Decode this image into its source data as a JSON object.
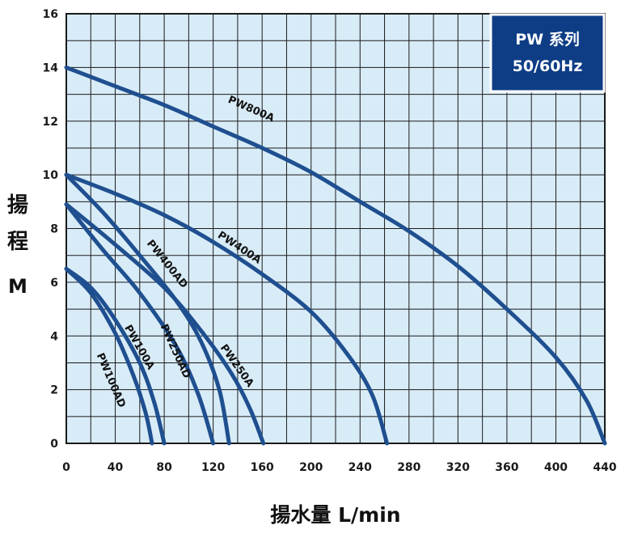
{
  "chart_data": {
    "type": "line",
    "legend_box": {
      "line1": "PW 系列",
      "line2": "50/60Hz",
      "placement": "top-right"
    },
    "xlabel": "揚水量 L/min",
    "ylabel_chars": [
      "揚",
      "程",
      "M"
    ],
    "xlim": [
      0,
      440
    ],
    "ylim": [
      0,
      16
    ],
    "x_ticks": [
      "0",
      "40",
      "80",
      "120",
      "160",
      "200",
      "240",
      "280",
      "320",
      "360",
      "400",
      "440"
    ],
    "y_ticks": [
      "0",
      "2",
      "4",
      "6",
      "8",
      "10",
      "12",
      "14",
      "16"
    ],
    "grid": true,
    "colors": {
      "plot_bg": "#d8ecf8",
      "grid": "#1a1a1a",
      "curve": "#1f4f8f",
      "legend_bg": "#0e3d86"
    },
    "series": [
      {
        "name": "PW800A",
        "points": [
          [
            0,
            14
          ],
          [
            40,
            13.3
          ],
          [
            80,
            12.6
          ],
          [
            120,
            11.8
          ],
          [
            160,
            11.0
          ],
          [
            200,
            10.1
          ],
          [
            240,
            9.0
          ],
          [
            280,
            7.9
          ],
          [
            320,
            6.6
          ],
          [
            360,
            5.0
          ],
          [
            400,
            3.2
          ],
          [
            425,
            1.6
          ],
          [
            440,
            0
          ]
        ]
      },
      {
        "name": "PW400A",
        "points": [
          [
            0,
            10
          ],
          [
            40,
            9.3
          ],
          [
            80,
            8.5
          ],
          [
            120,
            7.5
          ],
          [
            160,
            6.3
          ],
          [
            200,
            4.9
          ],
          [
            230,
            3.3
          ],
          [
            250,
            1.8
          ],
          [
            262,
            0
          ]
        ]
      },
      {
        "name": "PW400AD",
        "points": [
          [
            0,
            10
          ],
          [
            30,
            8.6
          ],
          [
            60,
            7.0
          ],
          [
            90,
            5.3
          ],
          [
            110,
            3.8
          ],
          [
            125,
            2.0
          ],
          [
            133,
            0
          ]
        ]
      },
      {
        "name": "PW250A",
        "points": [
          [
            0,
            8.9
          ],
          [
            40,
            7.4
          ],
          [
            80,
            5.8
          ],
          [
            110,
            4.2
          ],
          [
            135,
            2.6
          ],
          [
            150,
            1.3
          ],
          [
            161,
            0
          ]
        ]
      },
      {
        "name": "PW250AD",
        "points": [
          [
            0,
            8.9
          ],
          [
            30,
            7.2
          ],
          [
            60,
            5.6
          ],
          [
            90,
            3.6
          ],
          [
            108,
            1.8
          ],
          [
            120,
            0
          ]
        ]
      },
      {
        "name": "PW100A",
        "points": [
          [
            0,
            6.5
          ],
          [
            20,
            5.8
          ],
          [
            40,
            4.6
          ],
          [
            60,
            3.0
          ],
          [
            72,
            1.5
          ],
          [
            80,
            0
          ]
        ]
      },
      {
        "name": "PW100AD",
        "points": [
          [
            0,
            6.5
          ],
          [
            20,
            5.6
          ],
          [
            40,
            4.1
          ],
          [
            55,
            2.5
          ],
          [
            65,
            1.1
          ],
          [
            70,
            0
          ]
        ]
      }
    ]
  }
}
